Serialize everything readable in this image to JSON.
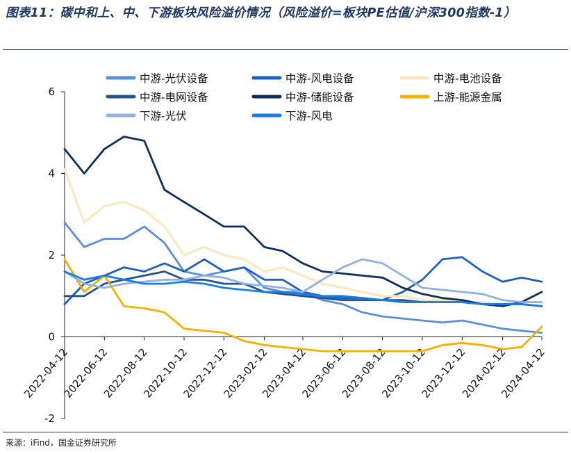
{
  "header": {
    "title": "图表11：碳中和上、中、下游板块风险溢价情况（风险溢价=板块PE估值/沪深300指数-1）",
    "source": "来源：iFind，国金证券研究所"
  },
  "chart_data": {
    "type": "line",
    "title": "",
    "xlabel": "",
    "ylabel": "",
    "ylim": [
      -2,
      6
    ],
    "yticks": [
      "-2",
      "0",
      "2",
      "4",
      "6"
    ],
    "grid": false,
    "legend_position": "top",
    "x_dates": [
      "2022-04-12",
      "2022-05-12",
      "2022-06-12",
      "2022-07-12",
      "2022-08-12",
      "2022-09-12",
      "2022-10-12",
      "2022-11-12",
      "2022-12-12",
      "2023-01-12",
      "2023-02-12",
      "2023-03-12",
      "2023-04-12",
      "2023-05-12",
      "2023-06-12",
      "2023-07-12",
      "2023-08-12",
      "2023-09-12",
      "2023-10-12",
      "2023-11-12",
      "2023-12-12",
      "2024-01-12",
      "2024-02-12",
      "2024-03-12",
      "2024-04-12"
    ],
    "x_tick_labels": [
      "2022-04-12",
      "2022-06-12",
      "2022-08-12",
      "2022-10-12",
      "2022-12-12",
      "2023-02-12",
      "2023-04-12",
      "2023-06-12",
      "2023-08-12",
      "2023-10-12",
      "2023-12-12",
      "2024-02-12",
      "2024-04-12"
    ],
    "series": [
      {
        "name": "中游-光伏设备",
        "color": "#5b8fd6",
        "values": [
          2.8,
          2.2,
          2.4,
          2.4,
          2.7,
          2.3,
          1.6,
          1.5,
          1.6,
          1.7,
          1.2,
          1.1,
          1.1,
          0.9,
          0.8,
          0.6,
          0.5,
          0.45,
          0.4,
          0.35,
          0.4,
          0.3,
          0.2,
          0.15,
          0.1
        ]
      },
      {
        "name": "中游-风电设备",
        "color": "#1f5fbf",
        "values": [
          0.8,
          1.3,
          1.5,
          1.7,
          1.6,
          1.8,
          1.6,
          1.9,
          1.6,
          1.7,
          1.4,
          1.4,
          1.1,
          1.0,
          0.95,
          0.95,
          0.9,
          1.1,
          1.4,
          1.9,
          1.95,
          1.6,
          1.35,
          1.45,
          1.35
        ]
      },
      {
        "name": "中游-电池设备",
        "color": "#fbe8c0",
        "values": [
          4.1,
          2.8,
          3.2,
          3.3,
          3.1,
          2.7,
          2.0,
          2.2,
          2.0,
          1.9,
          1.6,
          1.7,
          1.5,
          1.3,
          1.2,
          1.1,
          1.0,
          1.0,
          0.9,
          0.9,
          0.85,
          0.85,
          0.8,
          0.85,
          0.85
        ]
      },
      {
        "name": "中游-电网设备",
        "color": "#24528f",
        "values": [
          1.0,
          1.0,
          1.3,
          1.4,
          1.5,
          1.6,
          1.4,
          1.4,
          1.3,
          1.3,
          1.1,
          1.05,
          1.0,
          0.95,
          0.9,
          0.9,
          0.9,
          0.9,
          0.85,
          0.85,
          0.85,
          0.8,
          0.8,
          0.8,
          0.75
        ]
      },
      {
        "name": "中游-储能设备",
        "color": "#0f2d5c",
        "values": [
          4.6,
          4.0,
          4.6,
          4.9,
          4.8,
          3.6,
          3.3,
          3.0,
          2.7,
          2.7,
          2.2,
          2.1,
          1.8,
          1.6,
          1.55,
          1.5,
          1.45,
          1.2,
          1.05,
          0.95,
          0.9,
          0.8,
          0.75,
          0.85,
          1.1
        ]
      },
      {
        "name": "上游-能源金属",
        "color": "#f5b000",
        "values": [
          1.9,
          1.1,
          1.5,
          0.75,
          0.7,
          0.6,
          0.2,
          0.15,
          0.1,
          -0.1,
          -0.2,
          -0.25,
          -0.3,
          -0.35,
          -0.35,
          -0.35,
          -0.35,
          -0.35,
          -0.35,
          -0.2,
          -0.15,
          -0.2,
          -0.3,
          -0.25,
          0.25
        ]
      },
      {
        "name": "下游-光伏",
        "color": "#8fb1e3",
        "values": [
          1.6,
          1.3,
          1.2,
          1.3,
          1.35,
          1.4,
          1.4,
          1.5,
          1.45,
          1.3,
          1.25,
          1.2,
          1.1,
          1.4,
          1.7,
          1.9,
          1.8,
          1.5,
          1.2,
          1.15,
          1.1,
          1.05,
          0.9,
          0.85,
          0.85
        ]
      },
      {
        "name": "下游-风电",
        "color": "#1a7de6",
        "values": [
          1.6,
          1.4,
          1.5,
          1.4,
          1.3,
          1.3,
          1.35,
          1.3,
          1.2,
          1.15,
          1.1,
          1.1,
          1.05,
          1.0,
          1.0,
          0.95,
          0.9,
          0.85,
          0.85,
          0.85,
          0.85,
          0.8,
          0.8,
          0.8,
          0.75
        ]
      }
    ]
  }
}
